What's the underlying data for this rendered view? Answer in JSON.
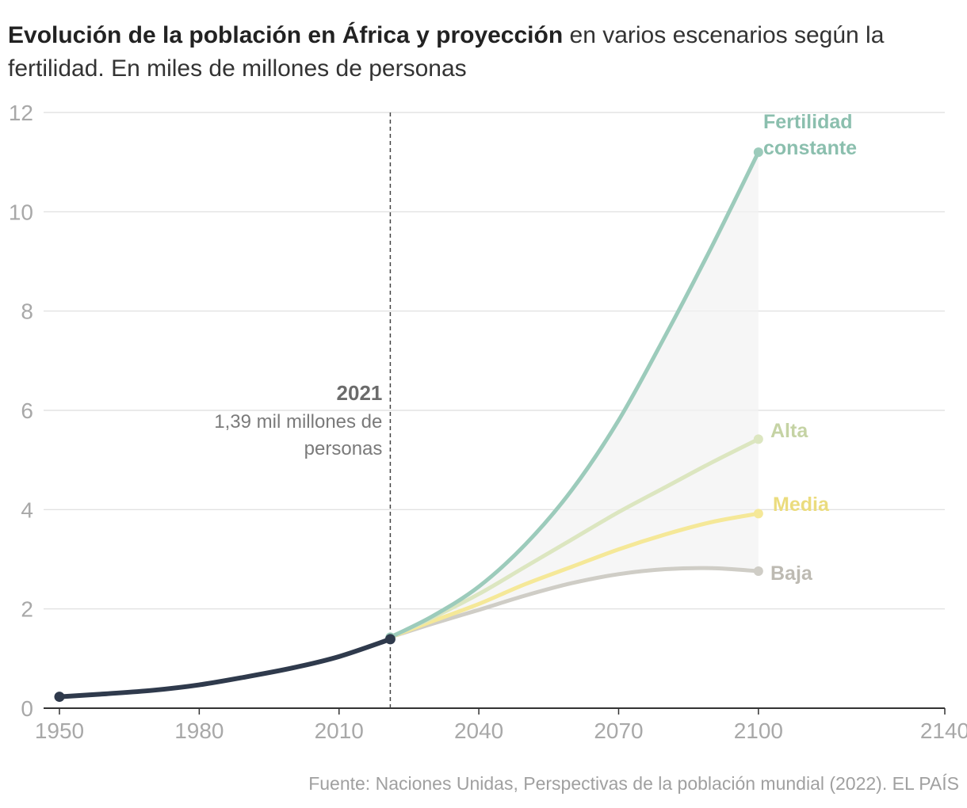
{
  "title_bold": "Evolución de la población en África y proyección",
  "title_rest": " en varios escenarios según la fertilidad. En miles de millones de personas",
  "source": "Fuente: Naciones Unidas, Perspectivas de la población mundial (2022). EL PAÍS",
  "chart_data": {
    "type": "line",
    "xlim": [
      1950,
      2140
    ],
    "ylim": [
      0,
      12
    ],
    "xticks": [
      "1950",
      "1980",
      "2010",
      "2040",
      "2070",
      "2100",
      "2140"
    ],
    "yticks": [
      "0",
      "2",
      "4",
      "6",
      "8",
      "10",
      "12"
    ],
    "grid": true,
    "annotation": {
      "x": 2021,
      "year_label": "2021",
      "line1": "1,39 mil millones de",
      "line2": "personas"
    },
    "history": {
      "color": "#2f3a4c",
      "x": [
        1950,
        1960,
        1970,
        1980,
        1990,
        2000,
        2010,
        2021
      ],
      "y": [
        0.23,
        0.29,
        0.36,
        0.47,
        0.63,
        0.81,
        1.04,
        1.39
      ]
    },
    "series": [
      {
        "name": "Fertilidad constante",
        "label_lines": [
          "Fertilidad",
          "constante"
        ],
        "color": "#9ccbbb",
        "x": [
          2021,
          2030,
          2040,
          2050,
          2060,
          2070,
          2080,
          2090,
          2100
        ],
        "y": [
          1.43,
          1.85,
          2.45,
          3.3,
          4.4,
          5.8,
          7.5,
          9.3,
          11.2
        ]
      },
      {
        "name": "Alta",
        "label_lines": [
          "Alta"
        ],
        "color": "#dce6c0",
        "x": [
          2021,
          2030,
          2040,
          2050,
          2060,
          2070,
          2080,
          2090,
          2100
        ],
        "y": [
          1.43,
          1.82,
          2.3,
          2.85,
          3.4,
          3.95,
          4.45,
          4.95,
          5.42
        ]
      },
      {
        "name": "Media",
        "label_lines": [
          "Media"
        ],
        "color": "#f5e898",
        "x": [
          2021,
          2030,
          2040,
          2050,
          2060,
          2070,
          2080,
          2090,
          2100
        ],
        "y": [
          1.43,
          1.75,
          2.1,
          2.5,
          2.85,
          3.2,
          3.5,
          3.75,
          3.92
        ]
      },
      {
        "name": "Baja",
        "label_lines": [
          "Baja"
        ],
        "color": "#cfcdc6",
        "x": [
          2021,
          2030,
          2040,
          2050,
          2060,
          2070,
          2080,
          2090,
          2100
        ],
        "y": [
          1.43,
          1.7,
          1.98,
          2.27,
          2.52,
          2.7,
          2.8,
          2.82,
          2.76
        ]
      }
    ]
  }
}
